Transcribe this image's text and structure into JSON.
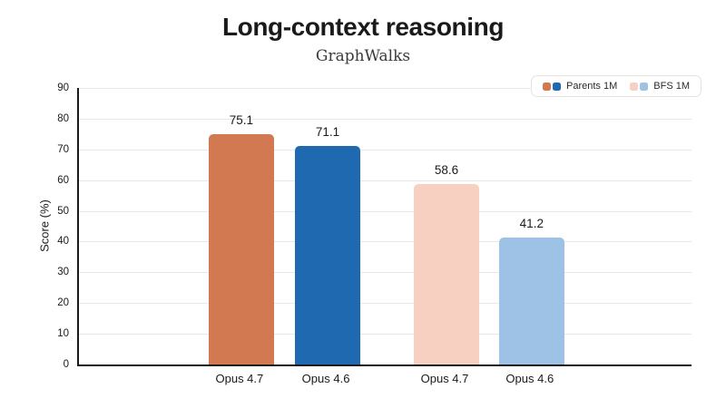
{
  "chart_data": {
    "type": "bar",
    "title": "Long-context reasoning",
    "subtitle": "GraphWalks",
    "ylabel": "Score (%)",
    "ylim": [
      0,
      90
    ],
    "ytick_step": 10,
    "yticks": [
      0,
      10,
      20,
      30,
      40,
      50,
      60,
      70,
      80,
      90
    ],
    "grid": true,
    "legend_position": "top-right",
    "categories": [
      "Opus 4.7",
      "Opus 4.6",
      "Opus 4.7",
      "Opus 4.6"
    ],
    "bars": [
      {
        "category": "Opus 4.7",
        "series": "Parents 1M",
        "value": 75.1,
        "value_label": "75.1",
        "color": "#d27952"
      },
      {
        "category": "Opus 4.6",
        "series": "Parents 1M",
        "value": 71.1,
        "value_label": "71.1",
        "color": "#1f69b1"
      },
      {
        "category": "Opus 4.7",
        "series": "BFS 1M",
        "value": 58.6,
        "value_label": "58.6",
        "color": "#f7d0c2"
      },
      {
        "category": "Opus 4.6",
        "series": "BFS 1M",
        "value": 41.2,
        "value_label": "41.2",
        "color": "#9dc2e6"
      }
    ],
    "legend": [
      {
        "label": "Parents 1M",
        "swatch_colors": [
          "#d27952",
          "#1f69b1"
        ]
      },
      {
        "label": "BFS 1M",
        "swatch_colors": [
          "#f7d0c2",
          "#9dc2e6"
        ]
      }
    ],
    "colors": {
      "axis": "#1a1a1a",
      "gridline": "#e9e7e3",
      "title_text": "#1a1a1a",
      "subtitle_text": "#3b3b3b",
      "legend_border": "#e6e3dd",
      "background": "#ffffff"
    }
  }
}
